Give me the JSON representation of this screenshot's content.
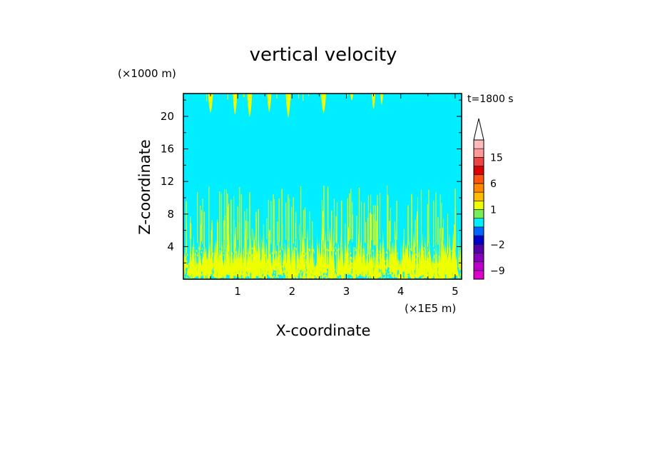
{
  "chart_data": {
    "type": "heatmap",
    "title": "vertical velocity",
    "xlabel": "X-coordinate",
    "ylabel": "Z-coordinate",
    "x_unit": "(×1E5 m)",
    "y_unit": "(×1000 m)",
    "time_label": "t=1800 s",
    "xlim": [
      0,
      5.12
    ],
    "ylim": [
      0,
      22.8
    ],
    "x_ticks": [
      1,
      2,
      3,
      4,
      5
    ],
    "y_ticks": [
      4,
      8,
      12,
      16,
      20
    ],
    "x_tick_labels": [
      "1",
      "2",
      "3",
      "4",
      "5"
    ],
    "y_tick_labels": [
      "4",
      "8",
      "12",
      "16",
      "20"
    ],
    "background_value_color": "#00eeff",
    "feature_color": "#eeff00",
    "colorbar": {
      "labels": [
        "15",
        "6",
        "1",
        "−2",
        "−9"
      ],
      "label_levels": [
        15,
        6,
        1,
        -2,
        -9
      ],
      "levels": [
        -12,
        -9,
        -6,
        -4,
        -2,
        -1,
        0,
        0.5,
        1,
        2,
        4,
        6,
        9,
        12,
        15,
        20,
        25
      ],
      "colors": [
        "#dd00cc",
        "#bb00cc",
        "#8800bb",
        "#5500aa",
        "#0000cc",
        "#0066ff",
        "#00eeff",
        "#77ee55",
        "#eeff00",
        "#ffbb00",
        "#ff8800",
        "#ff5511",
        "#dd0000",
        "#ee4444",
        "#ff9999",
        "#ffbbbb"
      ],
      "extend": "max"
    }
  }
}
